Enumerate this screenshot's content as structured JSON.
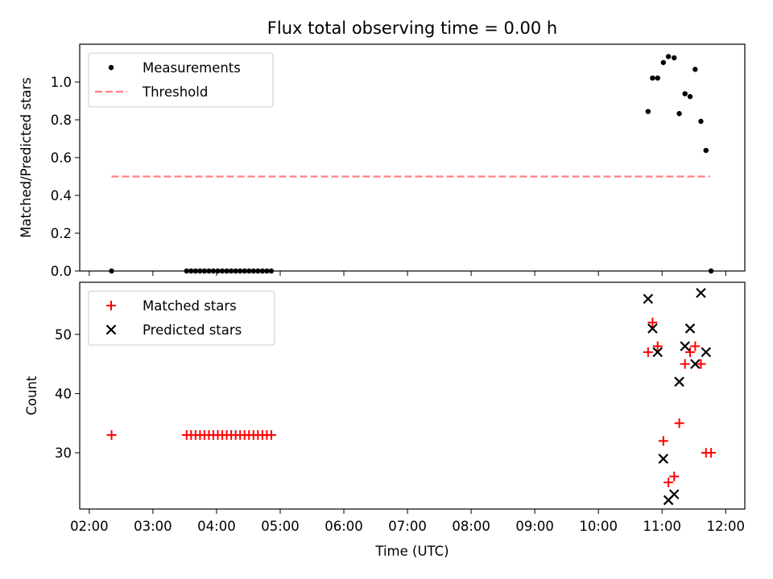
{
  "title": "Flux total observing time = 0.00 h",
  "chart_data": [
    {
      "type": "scatter",
      "ylabel": "Matched/Predicted stars",
      "xlim": [
        1.85,
        12.3
      ],
      "ylim": [
        0,
        1.2
      ],
      "yticks": [
        0,
        0.2,
        0.4,
        0.6,
        0.8,
        1.0
      ],
      "ytick_labels": [
        "0.0",
        "0.2",
        "0.4",
        "0.6",
        "0.8",
        "1.0"
      ],
      "legend_position": "top-left",
      "legend": [
        "Measurements",
        "Threshold"
      ],
      "threshold": {
        "name": "Threshold",
        "y": 0.5,
        "x": [
          2.35,
          11.75
        ],
        "color": "#ff8080"
      },
      "series": [
        {
          "name": "Measurements",
          "marker": "dot",
          "color": "#000000",
          "points": [
            [
              2.35,
              0
            ],
            [
              3.53,
              0
            ],
            [
              3.6,
              0
            ],
            [
              3.67,
              0
            ],
            [
              3.74,
              0
            ],
            [
              3.81,
              0
            ],
            [
              3.88,
              0
            ],
            [
              3.95,
              0
            ],
            [
              4.02,
              0
            ],
            [
              4.09,
              0
            ],
            [
              4.16,
              0
            ],
            [
              4.23,
              0
            ],
            [
              4.3,
              0
            ],
            [
              4.37,
              0
            ],
            [
              4.44,
              0
            ],
            [
              4.51,
              0
            ],
            [
              4.58,
              0
            ],
            [
              4.65,
              0
            ],
            [
              4.72,
              0
            ],
            [
              4.79,
              0
            ],
            [
              4.86,
              0
            ],
            [
              10.78,
              0.844
            ],
            [
              10.85,
              1.021
            ],
            [
              10.93,
              1.021
            ],
            [
              11.02,
              1.103
            ],
            [
              11.1,
              1.135
            ],
            [
              11.19,
              1.128
            ],
            [
              11.27,
              0.833
            ],
            [
              11.36,
              0.938
            ],
            [
              11.44,
              0.923
            ],
            [
              11.52,
              1.067
            ],
            [
              11.61,
              0.792
            ],
            [
              11.69,
              0.638
            ],
            [
              11.77,
              0
            ]
          ]
        }
      ]
    },
    {
      "type": "scatter",
      "xlabel": "Time (UTC)",
      "ylabel": "Count",
      "xlim": [
        1.85,
        12.3
      ],
      "ylim": [
        20.5,
        58.8
      ],
      "xticks": [
        2,
        3,
        4,
        5,
        6,
        7,
        8,
        9,
        10,
        11,
        12
      ],
      "xtick_labels": [
        "02:00",
        "03:00",
        "04:00",
        "05:00",
        "06:00",
        "07:00",
        "08:00",
        "09:00",
        "10:00",
        "11:00",
        "12:00"
      ],
      "yticks": [
        30,
        40,
        50
      ],
      "ytick_labels": [
        "30",
        "40",
        "50"
      ],
      "legend_position": "top-left",
      "legend": [
        "Matched stars",
        "Predicted stars"
      ],
      "series": [
        {
          "name": "Matched stars",
          "marker": "plus",
          "color": "#ff0000",
          "points": [
            [
              2.35,
              33
            ],
            [
              3.53,
              33
            ],
            [
              3.6,
              33
            ],
            [
              3.67,
              33
            ],
            [
              3.74,
              33
            ],
            [
              3.81,
              33
            ],
            [
              3.88,
              33
            ],
            [
              3.95,
              33
            ],
            [
              4.02,
              33
            ],
            [
              4.09,
              33
            ],
            [
              4.16,
              33
            ],
            [
              4.23,
              33
            ],
            [
              4.3,
              33
            ],
            [
              4.37,
              33
            ],
            [
              4.44,
              33
            ],
            [
              4.51,
              33
            ],
            [
              4.58,
              33
            ],
            [
              4.65,
              33
            ],
            [
              4.72,
              33
            ],
            [
              4.79,
              33
            ],
            [
              4.86,
              33
            ],
            [
              10.78,
              47
            ],
            [
              10.85,
              52
            ],
            [
              10.93,
              48
            ],
            [
              11.02,
              32
            ],
            [
              11.1,
              25
            ],
            [
              11.19,
              26
            ],
            [
              11.27,
              35
            ],
            [
              11.36,
              45
            ],
            [
              11.44,
              47
            ],
            [
              11.52,
              48
            ],
            [
              11.61,
              45
            ],
            [
              11.69,
              30
            ],
            [
              11.77,
              30
            ]
          ]
        },
        {
          "name": "Predicted stars",
          "marker": "x",
          "color": "#000000",
          "points": [
            [
              10.78,
              56
            ],
            [
              10.85,
              51
            ],
            [
              10.93,
              47
            ],
            [
              11.02,
              29
            ],
            [
              11.1,
              22
            ],
            [
              11.19,
              23
            ],
            [
              11.27,
              42
            ],
            [
              11.36,
              48
            ],
            [
              11.44,
              51
            ],
            [
              11.52,
              45
            ],
            [
              11.61,
              57
            ],
            [
              11.69,
              47
            ]
          ]
        }
      ]
    }
  ]
}
